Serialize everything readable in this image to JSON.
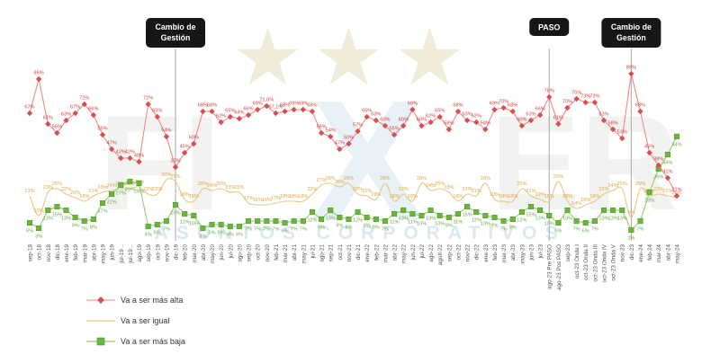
{
  "decor": {
    "star_glyph": "★"
  },
  "watermark": {
    "left_text": "FI",
    "center_text": "X",
    "right_text": "ER",
    "bottom_text": "ASUNTOS CORPORATIVOS"
  },
  "annotations": [
    {
      "label_line1": "Cambio de",
      "label_line2": "Gestión",
      "category": "dic-19"
    },
    {
      "label_line1": "PASO",
      "label_line2": "",
      "category": "ago-23 Pre PASO"
    },
    {
      "label_line1": "Cambio de",
      "label_line2": "Gestión",
      "category": "dic-23"
    }
  ],
  "chart_data": {
    "type": "line",
    "title": "",
    "xlabel": "",
    "ylabel": "",
    "ylim": [
      0,
      100
    ],
    "grid": false,
    "legend_position": "bottom-left",
    "categories": [
      "sep-18",
      "oct-18",
      "nov-18",
      "dic-18",
      "ene-19",
      "feb-19",
      "mar-19",
      "abr-19",
      "may-19",
      "jun-19",
      "jul-19 ..",
      "jul-19 ..",
      "ago-19",
      "sep-19",
      "oct-19",
      "nov-19",
      "dic-19",
      "feb-20",
      "mar-20",
      "abr-20",
      "may-20",
      "jun-20",
      "jul-20",
      "ago-20",
      "sep-20",
      "oct-20",
      "nov-20",
      "feb-21",
      "mar-21",
      "abr-21",
      "may-21",
      "jul-21",
      "ago-21",
      "sep-21",
      "oct-21",
      "nov-21",
      "dic-21",
      "ene-22",
      "feb-22",
      "mar-22",
      "abr-22",
      "may-22",
      "jun-22",
      "jul-22",
      "ago-22",
      "agoII-22",
      "sep-22",
      "oct-22",
      "nov-22",
      "dic-22",
      "ene-23",
      "feb-23",
      "mar-23",
      "abr-23",
      "may-23",
      "jun-23",
      "jul-23",
      "ago-23 Pre PASO",
      "ago-23 Pos PASO",
      "sep-23",
      "oct-23 Onda I",
      "oct-23 Onda II",
      "oct-23 Onda III",
      "oct-23 Onda IV",
      "oct-23 Onda V",
      "nov-23",
      "dic-23",
      "ene-24",
      "feb-24",
      "mar-24",
      "abr-24",
      "may-24"
    ],
    "series": [
      {
        "name": "Va a ser igual",
        "marker": "none",
        "line_color": "#e6c985",
        "label_color": "#dfa844",
        "marker_color": "#e6c985",
        "values": [
          21,
          10,
          23,
          25,
          22,
          20,
          18,
          21,
          23,
          24,
          25,
          25,
          26,
          22,
          22,
          30,
          29,
          19,
          18,
          25,
          24,
          25,
          23,
          23,
          17,
          16,
          16,
          17,
          18,
          18,
          18,
          22,
          27,
          28,
          26,
          28,
          22,
          21,
          19,
          28,
          18,
          22,
          18,
          28,
          24,
          25,
          23,
          18,
          22,
          21,
          28,
          19,
          18,
          18,
          25,
          21,
          19,
          18,
          29,
          18,
          14,
          16,
          18,
          22,
          24,
          25,
          9,
          25,
          21,
          22,
          21,
          20
        ]
      },
      {
        "name": "Va a ser más baja",
        "marker": "square",
        "line_color": "#93ce6c",
        "label_color": "#6aa84f",
        "marker_color": "#6ab53c",
        "values": [
          6,
          3,
          13,
          15,
          13,
          9,
          7,
          8,
          17,
          22,
          27,
          29,
          28,
          4,
          5,
          7,
          16,
          11,
          10,
          3,
          5,
          5,
          4,
          4,
          7,
          7,
          7,
          7,
          6,
          7,
          7,
          12,
          8,
          13,
          9,
          8,
          12,
          9,
          8,
          7,
          11,
          13,
          11,
          10,
          13,
          10,
          9,
          11,
          15,
          12,
          10,
          9,
          7,
          8,
          12,
          15,
          13,
          10,
          6,
          13,
          7,
          6,
          7,
          13,
          13,
          13,
          2,
          7,
          23,
          36,
          44,
          54
        ]
      },
      {
        "name": "Va a ser más alta",
        "marker": "diamond",
        "line_color": "#ec8a8a",
        "label_color": "#cc4444",
        "marker_color": "#d94f4f",
        "label_overrides": {
          "26": "71,0%",
          "27": "67,1%"
        },
        "values": [
          67,
          86,
          61,
          56,
          63,
          67,
          72,
          66,
          55,
          47,
          42,
          42,
          40,
          72,
          65,
          54,
          37,
          45,
          50,
          68,
          68,
          62,
          65,
          64,
          66,
          69,
          71,
          67,
          68,
          69,
          69,
          68,
          56,
          54,
          47,
          50,
          57,
          65,
          63,
          60,
          55,
          60,
          69,
          60,
          62,
          65,
          58,
          68,
          63,
          62,
          58,
          69,
          70,
          68,
          60,
          63,
          66,
          76,
          61,
          70,
          75,
          73,
          73,
          63,
          58,
          53,
          89,
          68,
          45,
          38,
          31,
          21
        ]
      }
    ],
    "legend_order": [
      "Va a ser más alta",
      "Va a ser igual",
      "Va a ser más baja"
    ]
  }
}
